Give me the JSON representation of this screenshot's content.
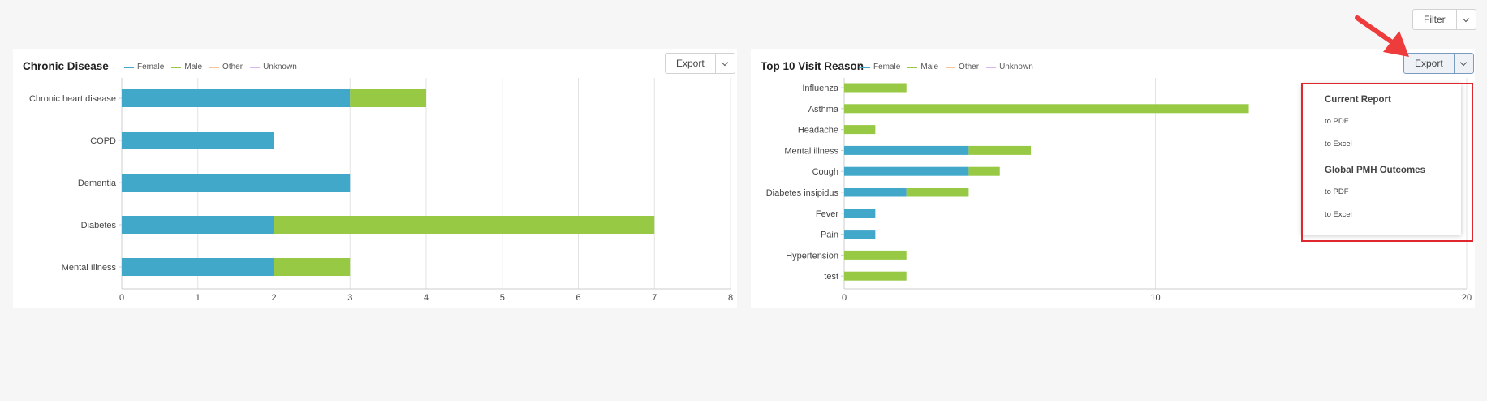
{
  "filter_button": {
    "label": "Filter"
  },
  "left_panel": {
    "export_label": "Export",
    "chart_data": {
      "type": "bar",
      "orientation": "horizontal",
      "stacked": true,
      "title": "Chronic Disease",
      "categories": [
        "Chronic heart disease",
        "COPD",
        "Dementia",
        "Diabetes",
        "Mental Illness"
      ],
      "series": [
        {
          "name": "Female",
          "color": "#41a8c9",
          "values": [
            3,
            2,
            3,
            2,
            2
          ]
        },
        {
          "name": "Male",
          "color": "#97c945",
          "values": [
            1,
            0,
            0,
            5,
            1
          ]
        },
        {
          "name": "Other",
          "color": "#f7c497",
          "values": [
            0,
            0,
            0,
            0,
            0
          ]
        },
        {
          "name": "Unknown",
          "color": "#dcb3ee",
          "values": [
            0,
            0,
            0,
            0,
            0
          ]
        }
      ],
      "xlim": [
        0,
        8
      ],
      "xticks": [
        0,
        1,
        2,
        3,
        4,
        5,
        6,
        7,
        8
      ],
      "grid": true,
      "legend_position": "top-left"
    }
  },
  "right_panel": {
    "export_label": "Export",
    "chart_data": {
      "type": "bar",
      "orientation": "horizontal",
      "stacked": true,
      "title": "Top 10 Visit Reason",
      "categories": [
        "Influenza",
        "Asthma",
        "Headache",
        "Mental illness",
        "Cough",
        "Diabetes insipidus",
        "Fever",
        "Pain",
        "Hypertension",
        "test"
      ],
      "series": [
        {
          "name": "Female",
          "color": "#41a8c9",
          "values": [
            0,
            0,
            0,
            4,
            4,
            2,
            1,
            1,
            0,
            0
          ]
        },
        {
          "name": "Male",
          "color": "#97c945",
          "values": [
            2,
            13,
            1,
            2,
            1,
            2,
            0,
            0,
            2,
            2
          ]
        },
        {
          "name": "Other",
          "color": "#f7c497",
          "values": [
            0,
            0,
            0,
            0,
            0,
            0,
            0,
            0,
            0,
            0
          ]
        },
        {
          "name": "Unknown",
          "color": "#dcb3ee",
          "values": [
            0,
            0,
            0,
            0,
            0,
            0,
            0,
            0,
            0,
            0
          ]
        }
      ],
      "xlim": [
        0,
        20
      ],
      "xticks": [
        0,
        10,
        20
      ],
      "grid": true,
      "legend_position": "top-left"
    }
  },
  "export_menu": {
    "sections": [
      {
        "heading": "Current Report",
        "items": [
          "to PDF",
          "to Excel"
        ]
      },
      {
        "heading": "Global PMH Outcomes",
        "items": [
          "to PDF",
          "to Excel"
        ]
      }
    ]
  },
  "colors": {
    "highlight": "#e0262e",
    "arrow": "#ee3b3b"
  }
}
